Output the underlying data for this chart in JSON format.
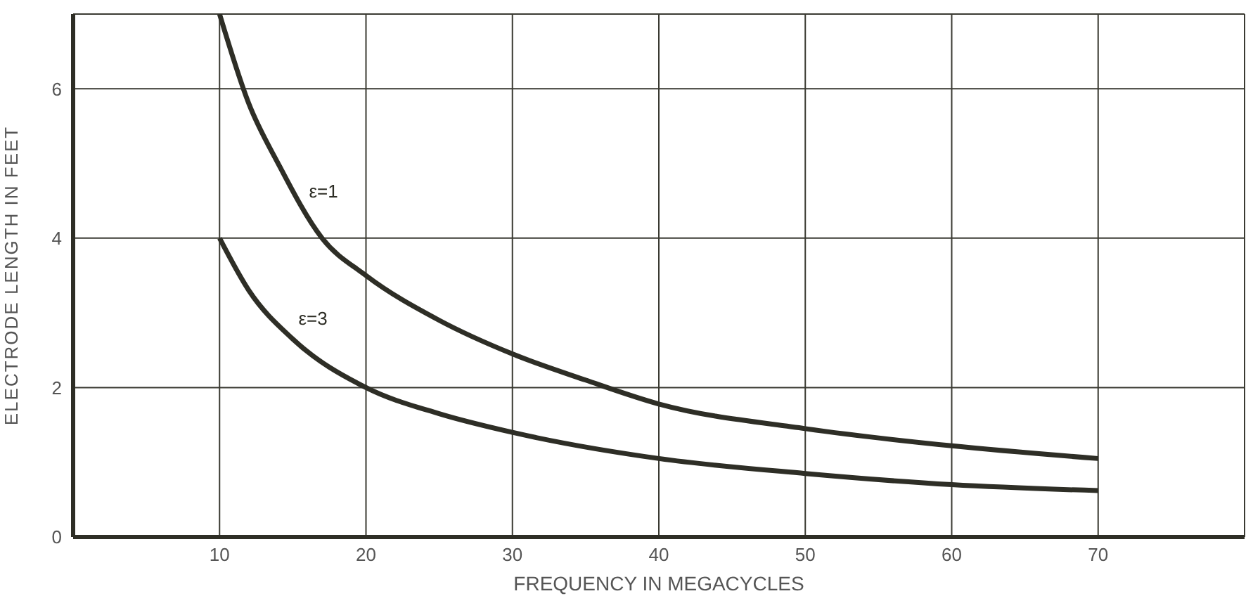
{
  "chart_data": {
    "type": "line",
    "xlabel": "FREQUENCY IN MEGACYCLES",
    "ylabel": "ELECTRODE LENGTH IN FEET",
    "xlim": [
      0,
      80
    ],
    "xticks": [
      10,
      20,
      30,
      40,
      50,
      60,
      70
    ],
    "ylim": [
      0,
      7
    ],
    "yticks": [
      0,
      2,
      4,
      6
    ],
    "grid": true,
    "marker": "none",
    "line_style": "solid",
    "series": [
      {
        "name": "ε=1",
        "color": "#2e2e26",
        "x": [
          10,
          12,
          14,
          17,
          20,
          25,
          30,
          35,
          40,
          50,
          60,
          70
        ],
        "values": [
          7.0,
          5.8,
          5.0,
          4.0,
          3.5,
          2.9,
          2.45,
          2.1,
          1.78,
          1.45,
          1.22,
          1.05
        ]
      },
      {
        "name": "ε=3",
        "color": "#2e2e26",
        "x": [
          10,
          12,
          15,
          20,
          25,
          30,
          40,
          50,
          60,
          70
        ],
        "values": [
          4.0,
          3.3,
          2.65,
          2.0,
          1.65,
          1.4,
          1.05,
          0.85,
          0.7,
          0.62
        ]
      }
    ]
  }
}
